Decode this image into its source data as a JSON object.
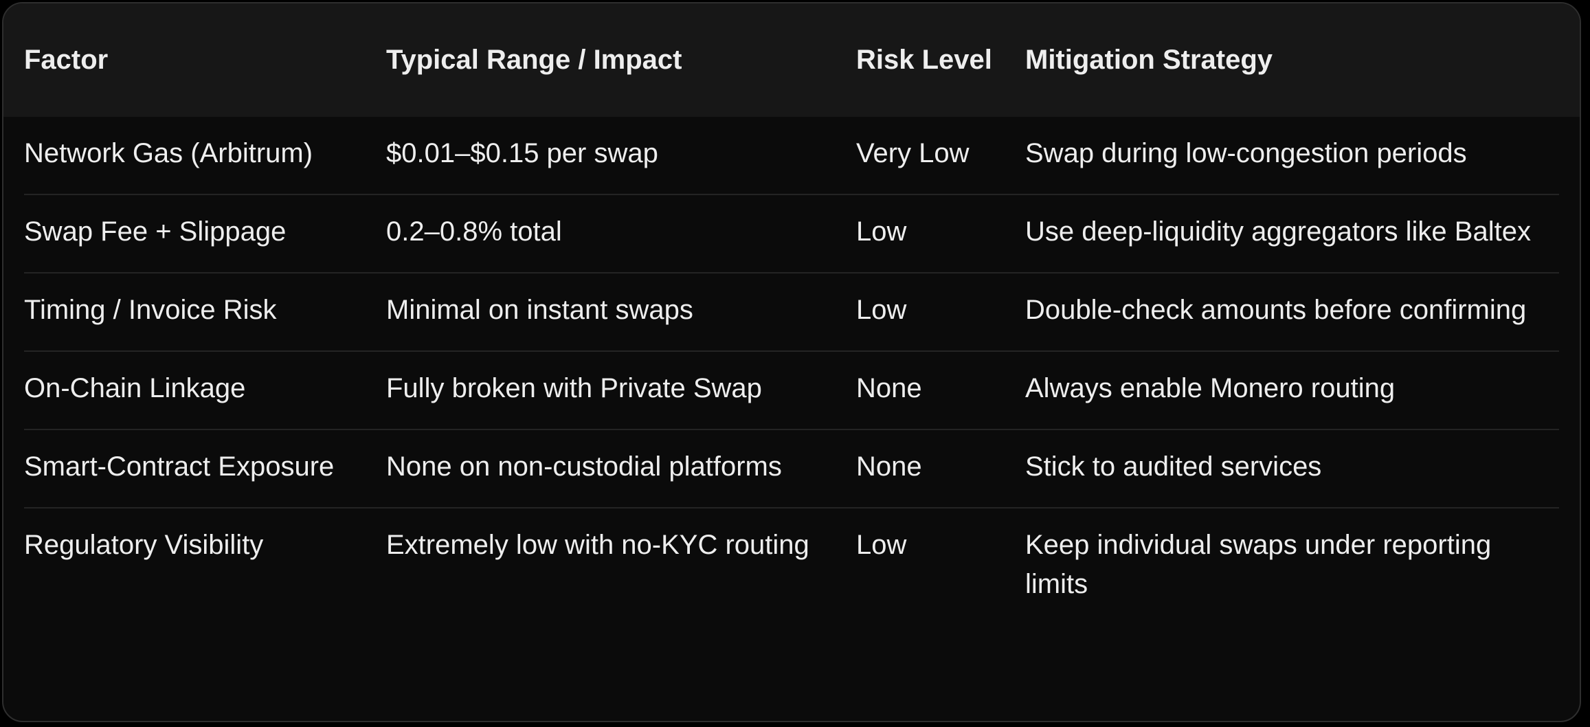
{
  "table": {
    "columns": [
      "Factor",
      "Typical Range / Impact",
      "Risk Level",
      "Mitigation Strategy"
    ],
    "rows": [
      [
        "Network Gas (Arbitrum)",
        "$0.01–$0.15 per swap",
        "Very Low",
        "Swap during low-congestion periods"
      ],
      [
        "Swap Fee + Slippage",
        "0.2–0.8% total",
        "Low",
        "Use deep-liquidity aggregators like Baltex"
      ],
      [
        "Timing / Invoice Risk",
        "Minimal on instant swaps",
        "Low",
        "Double-check amounts before confirming"
      ],
      [
        "On-Chain Linkage",
        "Fully broken with Private Swap",
        "None",
        "Always enable Monero routing"
      ],
      [
        "Smart-Contract Exposure",
        "None on non-custodial platforms",
        "None",
        "Stick to audited services"
      ],
      [
        "Regulatory Visibility",
        "Extremely low with no-KYC routing",
        "Low",
        "Keep individual swaps under reporting limits"
      ]
    ]
  }
}
